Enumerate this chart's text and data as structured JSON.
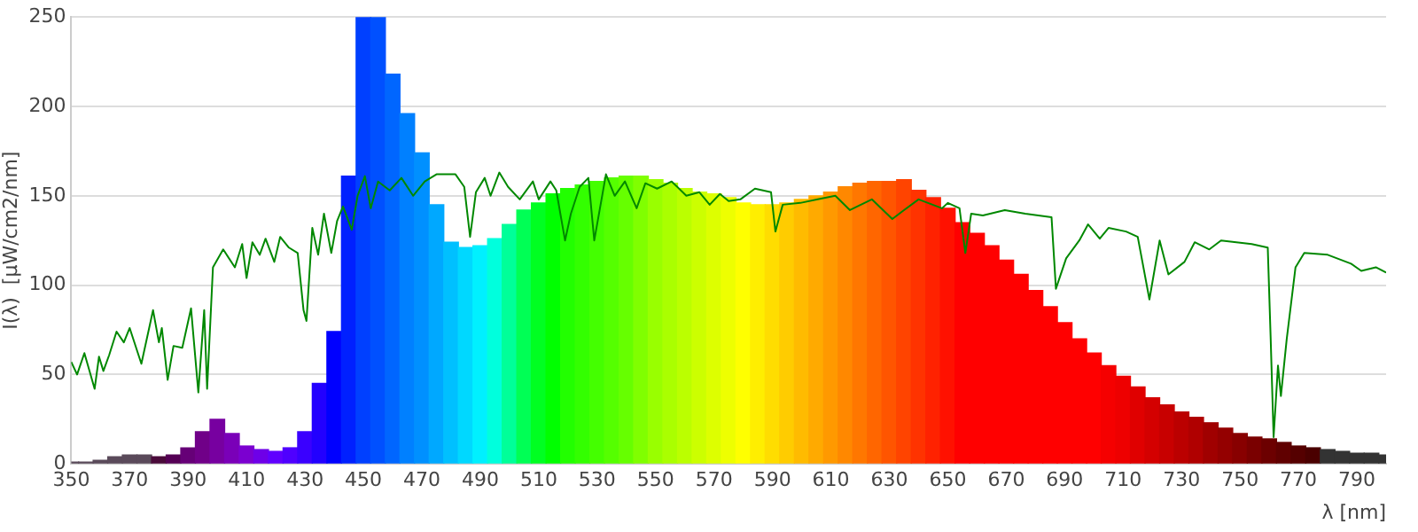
{
  "chart_data": {
    "type": "bar",
    "xlabel": "λ [nm]",
    "ylabel": "I(λ)  [μW/cm2/nm]",
    "xlim": [
      350,
      800
    ],
    "ylim": [
      0,
      250
    ],
    "xticks": [
      350,
      370,
      390,
      410,
      430,
      450,
      470,
      490,
      510,
      530,
      550,
      570,
      590,
      610,
      630,
      650,
      670,
      690,
      710,
      730,
      750,
      770,
      790
    ],
    "yticks": [
      0,
      50,
      100,
      150,
      200,
      250
    ],
    "grid": "y",
    "legend": false,
    "series": [
      {
        "x": [
          350,
          355,
          360,
          365,
          370,
          375,
          380,
          385,
          390,
          395,
          400,
          405,
          410,
          415,
          420,
          425,
          430,
          435,
          440,
          445,
          450,
          455,
          460,
          465,
          470,
          475,
          480,
          485,
          490,
          495,
          500,
          505,
          510,
          515,
          520,
          525,
          530,
          535,
          540,
          545,
          550,
          555,
          560,
          565,
          570,
          575,
          580,
          585,
          590,
          595,
          600,
          605,
          610,
          615,
          620,
          625,
          630,
          635,
          640,
          645,
          650,
          655,
          660,
          665,
          670,
          675,
          680,
          685,
          690,
          695,
          700,
          705,
          710,
          715,
          720,
          725,
          730,
          735,
          740,
          745,
          750,
          755,
          760,
          765,
          770,
          775,
          780,
          785,
          790,
          795,
          800
        ],
        "values": [
          1,
          1,
          2,
          4,
          5,
          5,
          4,
          5,
          9,
          18,
          25,
          17,
          10,
          8,
          7,
          9,
          18,
          45,
          74,
          161,
          250,
          250,
          218,
          196,
          174,
          145,
          124,
          121,
          122,
          126,
          134,
          142,
          146,
          151,
          154,
          156,
          158,
          160,
          161,
          161,
          159,
          157,
          154,
          152,
          151,
          149,
          146,
          145,
          145,
          146,
          148,
          150,
          152,
          155,
          157,
          158,
          158,
          159,
          153,
          149,
          143,
          135,
          129,
          122,
          114,
          106,
          97,
          88,
          79,
          70,
          62,
          55,
          49,
          43,
          37,
          33,
          29,
          26,
          23,
          20,
          17,
          15,
          14,
          12,
          10,
          9,
          8,
          7,
          6,
          6,
          5
        ],
        "colors": [
          "#5a4a5a",
          "#5a4a5a",
          "#5a4a5a",
          "#5a4a5a",
          "#5a4a5a",
          "#5a4a5a",
          "#4a0a3a",
          "#550055",
          "#660077",
          "#700088",
          "#7700a0",
          "#7a00b8",
          "#7b00d0",
          "#6e00e8",
          "#6000ff",
          "#4f00ff",
          "#3a00ff",
          "#2200ff",
          "#0000ff",
          "#0020ff",
          "#0040ff",
          "#0050ff",
          "#0066ff",
          "#0080ff",
          "#0090ff",
          "#00a8ff",
          "#00c0ff",
          "#00d8ff",
          "#00f0ff",
          "#00ffdd",
          "#00ff99",
          "#00ff55",
          "#00ff22",
          "#00ff00",
          "#22ff00",
          "#33ff00",
          "#44ff00",
          "#55ff00",
          "#66ff00",
          "#80ff00",
          "#99ff00",
          "#aaff00",
          "#bbff00",
          "#ccff00",
          "#ddff00",
          "#eeff00",
          "#ffff00",
          "#ffee00",
          "#ffdd00",
          "#ffcc00",
          "#ffbb00",
          "#ffaa00",
          "#ff9900",
          "#ff8800",
          "#ff7700",
          "#ff6600",
          "#ff5500",
          "#ff4400",
          "#ff3300",
          "#ff2200",
          "#ff1100",
          "#ff0000",
          "#ff0000",
          "#ff0000",
          "#ff0000",
          "#ff0000",
          "#ff0000",
          "#ff0000",
          "#ff0000",
          "#ff0000",
          "#ff0000",
          "#f50000",
          "#ee0000",
          "#e00000",
          "#d40000",
          "#c80000",
          "#bb0000",
          "#b00000",
          "#a00000",
          "#940000",
          "#880000",
          "#7a0000",
          "#6c0000",
          "#600000",
          "#550000",
          "#4a0000",
          "#333333",
          "#333333",
          "#333333",
          "#333333",
          "#333333"
        ]
      },
      {
        "type": "line",
        "color": "#008800",
        "x": [
          350,
          352,
          354.5,
          358,
          359.5,
          361,
          363,
          365.5,
          368,
          370,
          374,
          378,
          380,
          381,
          383,
          385,
          388,
          391,
          393.5,
          395.5,
          396.5,
          398.5,
          402,
          406,
          408.5,
          410,
          412,
          414.5,
          416.5,
          419.5,
          421.5,
          424.5,
          427.5,
          429.5,
          430.5,
          432.5,
          434.5,
          436.5,
          439,
          441,
          443,
          446,
          448,
          450.5,
          452.5,
          455,
          459,
          463,
          467,
          471,
          475,
          481.5,
          484.5,
          486.5,
          488.5,
          491.5,
          493.5,
          496.5,
          499.5,
          503.5,
          508,
          510,
          514,
          516,
          519,
          521,
          524,
          527,
          529,
          533,
          536,
          539.5,
          543.5,
          546.5,
          550.5,
          555.5,
          560.5,
          565,
          568.5,
          572,
          575,
          579,
          584,
          589.5,
          591,
          593.5,
          599.5,
          605.5,
          611.5,
          616.5,
          624,
          631,
          635,
          640,
          648,
          650,
          654,
          656,
          658,
          662,
          669.5,
          676.5,
          685.5,
          687,
          690.5,
          695,
          698,
          702,
          705,
          711,
          715,
          719,
          722.5,
          725.5,
          731,
          734.5,
          739.5,
          743.5,
          754,
          759.5,
          760.5,
          761.5,
          763,
          764,
          766,
          769,
          772,
          780,
          788,
          791.5,
          796.5,
          800
        ],
        "values": [
          57,
          50,
          62,
          42,
          60,
          52,
          61,
          74,
          68,
          76,
          56,
          86,
          68,
          76,
          47,
          66,
          65,
          87,
          40,
          86,
          42,
          110,
          120,
          110,
          123,
          104,
          124,
          117,
          126,
          113,
          127,
          121,
          118,
          86,
          80,
          132,
          117,
          140,
          118,
          136,
          144,
          131,
          150,
          161,
          143,
          158,
          153,
          160,
          150,
          158,
          162,
          162,
          155,
          127,
          152,
          160,
          150,
          163,
          155,
          148,
          158,
          148,
          158,
          153,
          125,
          140,
          155,
          160,
          125,
          162,
          150,
          158,
          143,
          157,
          154,
          158,
          150,
          152,
          145,
          151,
          147,
          148,
          154,
          152,
          130,
          145,
          146,
          148,
          150,
          142,
          148,
          137,
          142,
          148,
          143,
          146,
          143,
          118,
          140,
          139,
          142,
          140,
          138,
          98,
          115,
          125,
          134,
          126,
          132,
          130,
          127,
          92,
          125,
          106,
          113,
          124,
          120,
          125,
          123,
          121,
          70,
          15,
          55,
          38,
          70,
          110,
          118,
          117,
          112,
          108,
          110,
          107
        ]
      }
    ]
  }
}
